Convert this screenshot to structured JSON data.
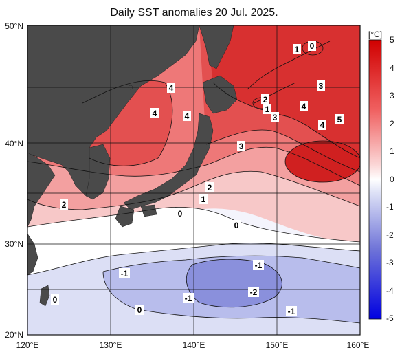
{
  "title": "Daily SST anomalies 20 Jul. 2025.",
  "map": {
    "lat_labels": [
      "50°N",
      "40°N",
      "30°N",
      "20°N"
    ],
    "lon_labels": [
      "120°E",
      "130°E",
      "140°E",
      "150°E",
      "160°E"
    ],
    "lat_range": [
      20,
      50
    ],
    "lon_range": [
      120,
      160
    ],
    "land_color": "#4a4a4a",
    "contour_labels": [
      "4",
      "4",
      "4",
      "2",
      "1",
      "3",
      "3",
      "1",
      "0",
      "4",
      "4",
      "5",
      "3",
      "2",
      "1",
      "2",
      "0",
      "0",
      "-1",
      "-1",
      "-1",
      "-2",
      "-1",
      "0",
      "0"
    ]
  },
  "colorbar": {
    "unit": "[°C]",
    "ticks": [
      "5",
      "4",
      "3",
      "2",
      "1",
      "0",
      "-1",
      "-2",
      "-3",
      "-4",
      "-5"
    ],
    "colors": {
      "max": "#e01010",
      "high": "#f07070",
      "warm": "#f8c0c0",
      "zero": "#ffffff",
      "cool": "#c8d0f0",
      "cold": "#7070d8",
      "min": "#1010e0"
    }
  }
}
